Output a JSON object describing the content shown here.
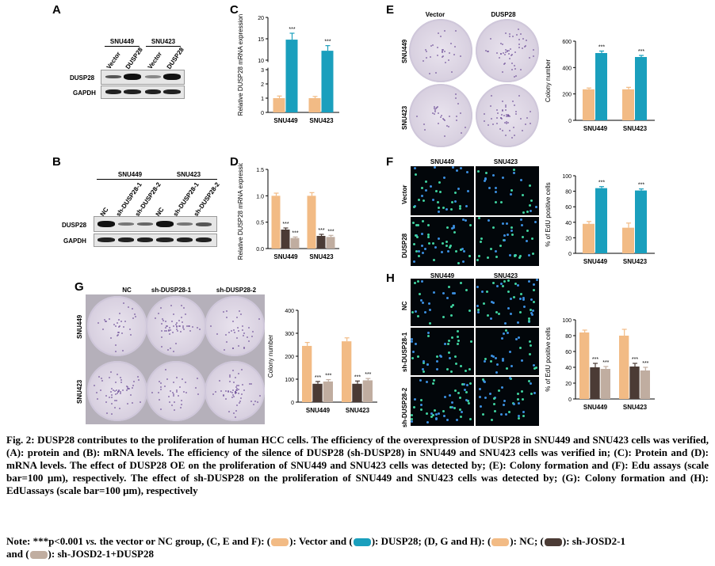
{
  "colors": {
    "vector": "#f2bb85",
    "dusp28": "#1a9fbd",
    "nc": "#f2bb85",
    "sh1": "#4b3b35",
    "sh2": "#c0ada0"
  },
  "panels": {
    "A": {
      "letter": "A",
      "groups": [
        "SNU449",
        "SNU423"
      ],
      "lanes": [
        "Vector",
        "DUSP28",
        "Vector",
        "DUSP28"
      ],
      "rows": [
        "DUSP28",
        "GAPDH"
      ]
    },
    "B": {
      "letter": "B",
      "groups": [
        "SNU449",
        "SNU423"
      ],
      "lanes": [
        "NC",
        "sh-DUSP28-1",
        "sh-DUSP28-2",
        "NC",
        "sh-DUSP28-1",
        "sh-DUSP28-2"
      ],
      "rows": [
        "DUSP28",
        "GAPDH"
      ]
    },
    "C": {
      "letter": "C"
    },
    "D": {
      "letter": "D"
    },
    "E": {
      "letter": "E",
      "cols": [
        "Vector",
        "DUSP28"
      ],
      "rows": [
        "SNU449",
        "SNU423"
      ]
    },
    "F": {
      "letter": "F",
      "cols": [
        "SNU449",
        "SNU423"
      ],
      "rows": [
        "Vector",
        "DUSP28"
      ]
    },
    "G": {
      "letter": "G",
      "cols": [
        "NC",
        "sh-DUSP28-1",
        "sh-DUSP28-2"
      ],
      "rows": [
        "SNU449",
        "SNU423"
      ]
    },
    "H": {
      "letter": "H",
      "cols": [
        "SNU449",
        "SNU423"
      ],
      "rows": [
        "NC",
        "sh-DUSP28-1",
        "sh-DUSP28-2"
      ]
    }
  },
  "chart_data": [
    {
      "id": "C",
      "type": "bar",
      "ylabel": "Relative DUSP28 mRNA expression",
      "categories": [
        "SNU449",
        "SNU423"
      ],
      "broken_axis": true,
      "yticks": [
        "20",
        "15",
        "10",
        "3",
        "2",
        "1",
        "0"
      ],
      "series": [
        {
          "values": [
            1.0,
            1.0
          ],
          "errors": [
            0.15,
            0.12
          ]
        },
        {
          "values": [
            14.8,
            12.2
          ],
          "errors": [
            1.5,
            1.2
          ]
        }
      ],
      "annotations": [
        "***",
        "***"
      ]
    },
    {
      "id": "D",
      "type": "bar",
      "ylabel": "Relative DUSP28 mRNA expression",
      "categories": [
        "SNU449",
        "SNU423"
      ],
      "ylim": [
        0,
        1.5
      ],
      "yticks": [
        "1.5",
        "1.0",
        "0.5",
        "0.0"
      ],
      "series": [
        {
          "values": [
            1.0,
            1.0
          ],
          "errors": [
            0.05,
            0.06
          ]
        },
        {
          "values": [
            0.36,
            0.24
          ],
          "errors": [
            0.03,
            0.03
          ]
        },
        {
          "values": [
            0.2,
            0.22
          ],
          "errors": [
            0.02,
            0.03
          ]
        }
      ],
      "annotations": [
        "***",
        "***",
        "***",
        "***"
      ]
    },
    {
      "id": "E",
      "type": "bar",
      "ylabel": "Colony number",
      "categories": [
        "SNU449",
        "SNU423"
      ],
      "ylim": [
        0,
        600
      ],
      "yticks": [
        "600",
        "400",
        "200",
        "0"
      ],
      "series": [
        {
          "values": [
            235,
            235
          ],
          "errors": [
            10,
            15
          ]
        },
        {
          "values": [
            510,
            480
          ],
          "errors": [
            15,
            12
          ]
        }
      ],
      "annotations": [
        "***",
        "***"
      ]
    },
    {
      "id": "F",
      "type": "bar",
      "ylabel": "% of EdU positive cells",
      "categories": [
        "SNU449",
        "SNU423"
      ],
      "ylim": [
        0,
        100
      ],
      "yticks": [
        "100",
        "80",
        "60",
        "40",
        "20",
        "0"
      ],
      "series": [
        {
          "values": [
            38,
            33
          ],
          "errors": [
            3,
            6
          ]
        },
        {
          "values": [
            84,
            81
          ],
          "errors": [
            2,
            2
          ]
        }
      ],
      "annotations": [
        "***",
        "***"
      ]
    },
    {
      "id": "G",
      "type": "bar",
      "ylabel": "Colony number",
      "categories": [
        "SNU449",
        "SNU423"
      ],
      "ylim": [
        0,
        400
      ],
      "yticks": [
        "400",
        "300",
        "200",
        "100",
        "0"
      ],
      "series": [
        {
          "values": [
            245,
            265
          ],
          "errors": [
            15,
            15
          ]
        },
        {
          "values": [
            80,
            80
          ],
          "errors": [
            10,
            12
          ]
        },
        {
          "values": [
            90,
            95
          ],
          "errors": [
            8,
            8
          ]
        }
      ],
      "annotations": [
        "***",
        "***",
        "***",
        "***"
      ]
    },
    {
      "id": "H",
      "type": "bar",
      "ylabel": "% of EdU positive cells",
      "categories": [
        "SNU449",
        "SNU423"
      ],
      "ylim": [
        0,
        100
      ],
      "yticks": [
        "100",
        "80",
        "60",
        "40",
        "20",
        "0"
      ],
      "series": [
        {
          "values": [
            84,
            80
          ],
          "errors": [
            3,
            8
          ]
        },
        {
          "values": [
            40,
            41
          ],
          "errors": [
            5,
            4
          ]
        },
        {
          "values": [
            38,
            36
          ],
          "errors": [
            3,
            4
          ]
        }
      ],
      "annotations": [
        "***",
        "***",
        "***",
        "***"
      ]
    }
  ],
  "caption": {
    "fig_label": "Fig. 2:",
    "text": "DUSP28 contributes to the proliferation of human HCC cells. The efficiency of the overexpression of DUSP28 in SNU449 and SNU423 cells was verified, (A): protein and (B): mRNA levels. The efficiency of the silence of DUSP28 (sh-DUSP28) in SNU449 and SNU423 cells was verified in; (C): Protein and (D): mRNA levels. The effect of DUSP28 OE on the proliferation of SNU449 and SNU423 cells was detected by; (E): Colony formation and (F): Edu assays (scale bar=100 μm), respectively. The effect of sh-DUSP28 on the proliferation of SNU449 and SNU423 cells was detected by; (G): Colony formation and (H): EdUassays (scale bar=100 μm), respectively"
  },
  "note": {
    "p1": "Note: ***p<0.001 ",
    "vs": "vs.",
    "p2": " the vector or NC group, (C, E and F): (",
    "p3": "): Vector and (",
    "p4": "): DUSP28; (D, G and H): (",
    "p5": "): NC; (",
    "p6": "): sh-JOSD2-1",
    "p7": "and (",
    "p8": "): sh-JOSD2-1+DUSP28"
  }
}
